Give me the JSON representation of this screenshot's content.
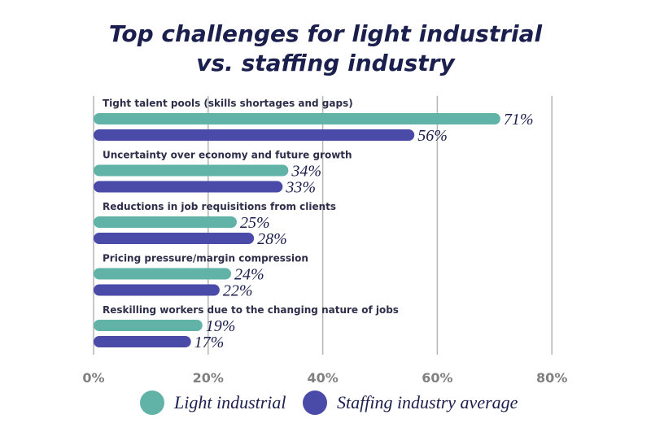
{
  "title_lines": [
    "Top challenges for light industrial",
    "vs. staffing industry"
  ],
  "colors": {
    "light_industrial": "#61b3a8",
    "staffing": "#4a4aa9",
    "grid": "#b5b5b5",
    "category_text": "#2e2e4a",
    "tick_text": "#808080",
    "value_text": "#1b1f4d"
  },
  "legend": [
    {
      "label": "Light industrial",
      "color": "#61b3a8"
    },
    {
      "label": "Staffing industry average",
      "color": "#4a4aa9"
    }
  ],
  "chart_data": {
    "type": "bar",
    "orientation": "horizontal",
    "title": "Top challenges for light industrial vs. staffing industry",
    "categories": [
      "Tight talent pools (skills shortages and gaps)",
      "Uncertainty over economy and future growth",
      "Reductions in job requisitions from clients",
      "Pricing pressure/margin compression",
      "Reskilling workers due to the changing nature of jobs"
    ],
    "series": [
      {
        "name": "Light industrial",
        "values": [
          71,
          34,
          25,
          24,
          19
        ],
        "color": "#61b3a8"
      },
      {
        "name": "Staffing industry average",
        "values": [
          56,
          33,
          28,
          22,
          17
        ],
        "color": "#4a4aa9"
      }
    ],
    "value_suffix": "%",
    "xlim": [
      0,
      80
    ],
    "xticks": [
      "0%",
      "20%",
      "40%",
      "60%",
      "80%"
    ],
    "grid": true,
    "legend_position": "bottom"
  }
}
